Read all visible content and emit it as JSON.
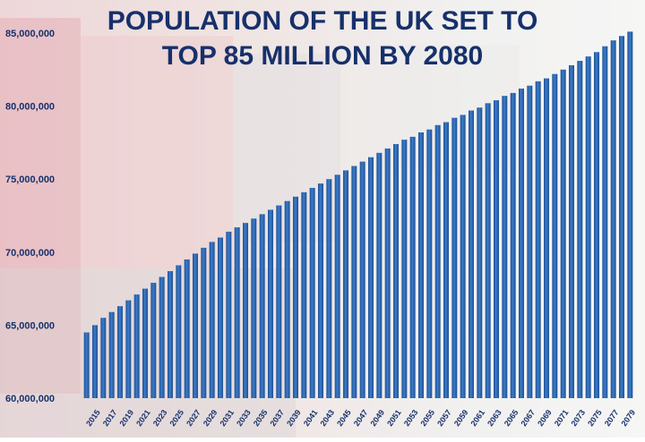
{
  "chart_data": {
    "type": "bar",
    "title_lines": [
      "POPULATION OF THE UK SET TO",
      "TOP 85 MILLION BY 2080"
    ],
    "xlabel": "",
    "ylabel": "",
    "ylim": [
      60000000,
      85000000
    ],
    "y_ticks": [
      60000000,
      65000000,
      70000000,
      75000000,
      80000000,
      85000000
    ],
    "y_tick_labels": [
      "60,000,000",
      "65,000,000",
      "70,000,000",
      "75,000,000",
      "80,000,000",
      "85,000,000"
    ],
    "x_tick_labels": [
      "2015",
      "2017",
      "2019",
      "2021",
      "2023",
      "2025",
      "2027",
      "2029",
      "2031",
      "2033",
      "2035",
      "2037",
      "2039",
      "2041",
      "2043",
      "2045",
      "2047",
      "2049",
      "2051",
      "2053",
      "2055",
      "2057",
      "2059",
      "2061",
      "2063",
      "2065",
      "2067",
      "2069",
      "2071",
      "2073",
      "2075",
      "2077",
      "2079"
    ],
    "grid": false,
    "legend": "none",
    "bar_color": "#2f6db8",
    "text_color": "#17306b",
    "categories": [
      "2015",
      "2016",
      "2017",
      "2018",
      "2019",
      "2020",
      "2021",
      "2022",
      "2023",
      "2024",
      "2025",
      "2026",
      "2027",
      "2028",
      "2029",
      "2030",
      "2031",
      "2032",
      "2033",
      "2034",
      "2035",
      "2036",
      "2037",
      "2038",
      "2039",
      "2040",
      "2041",
      "2042",
      "2043",
      "2044",
      "2045",
      "2046",
      "2047",
      "2048",
      "2049",
      "2050",
      "2051",
      "2052",
      "2053",
      "2054",
      "2055",
      "2056",
      "2057",
      "2058",
      "2059",
      "2060",
      "2061",
      "2062",
      "2063",
      "2064",
      "2065",
      "2066",
      "2067",
      "2068",
      "2069",
      "2070",
      "2071",
      "2072",
      "2073",
      "2074",
      "2075",
      "2076",
      "2077",
      "2078",
      "2079",
      "2080"
    ],
    "values": [
      64500000,
      65000000,
      65500000,
      65900000,
      66300000,
      66700000,
      67100000,
      67500000,
      67900000,
      68300000,
      68700000,
      69100000,
      69500000,
      69900000,
      70300000,
      70700000,
      71000000,
      71400000,
      71700000,
      72000000,
      72300000,
      72600000,
      72900000,
      73200000,
      73500000,
      73800000,
      74100000,
      74400000,
      74700000,
      75000000,
      75300000,
      75600000,
      75900000,
      76200000,
      76500000,
      76800000,
      77100000,
      77400000,
      77700000,
      77900000,
      78200000,
      78400000,
      78700000,
      78900000,
      79200000,
      79400000,
      79700000,
      79900000,
      80200000,
      80400000,
      80700000,
      80900000,
      81200000,
      81400000,
      81700000,
      81900000,
      82200000,
      82500000,
      82800000,
      83100000,
      83400000,
      83700000,
      84100000,
      84500000,
      84800000,
      85100000
    ]
  }
}
